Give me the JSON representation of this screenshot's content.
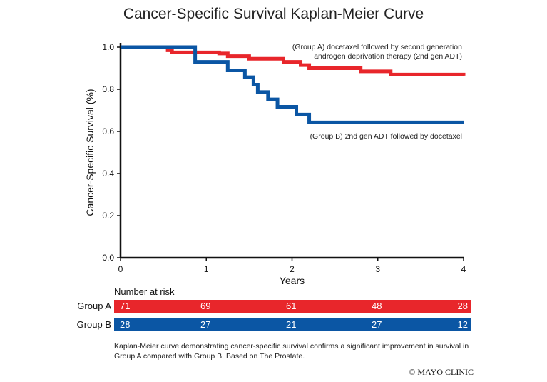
{
  "chart_data": {
    "type": "line",
    "title": "Cancer-Specific Survival Kaplan-Meier Curve",
    "xlabel": "Years",
    "ylabel": "Cancer-Specific Survival (%)",
    "xlim": [
      0,
      4
    ],
    "ylim": [
      0,
      1.0
    ],
    "xticks": [
      "0",
      "1",
      "2",
      "3",
      "4"
    ],
    "yticks": [
      "0.0",
      "0.2",
      "0.4",
      "0.6",
      "0.8",
      "1.0"
    ],
    "series": [
      {
        "name": "(Group A) docetaxel followed by second generation androgen deprivation therapy (2nd gen ADT)",
        "label_lines": [
          "(Group A) docetaxel followed by second generation",
          "androgen deprivation therapy (2nd gen ADT)"
        ],
        "color": "#e8262b",
        "steps": [
          [
            0,
            1.0
          ],
          [
            0.55,
            0.985
          ],
          [
            0.6,
            0.975
          ],
          [
            1.15,
            0.97
          ],
          [
            1.25,
            0.957
          ],
          [
            1.5,
            0.945
          ],
          [
            1.9,
            0.93
          ],
          [
            2.1,
            0.915
          ],
          [
            2.2,
            0.9
          ],
          [
            2.8,
            0.885
          ],
          [
            3.15,
            0.87
          ],
          [
            4,
            0.865
          ]
        ]
      },
      {
        "name": "(Group B) 2nd gen ADT followed by docetaxel",
        "label_lines": [
          "(Group B) 2nd gen ADT followed by docetaxel"
        ],
        "color": "#0b56a4",
        "steps": [
          [
            0,
            1.0
          ],
          [
            0.87,
            0.93
          ],
          [
            1.25,
            0.89
          ],
          [
            1.45,
            0.857
          ],
          [
            1.55,
            0.822
          ],
          [
            1.6,
            0.787
          ],
          [
            1.72,
            0.752
          ],
          [
            1.83,
            0.717
          ],
          [
            2.05,
            0.68
          ],
          [
            2.2,
            0.643
          ],
          [
            4,
            0.643
          ]
        ]
      }
    ],
    "risk_table": {
      "heading": "Number at risk",
      "rows": [
        {
          "group": "Group A",
          "color": "#e8262b",
          "values": [
            "71",
            "69",
            "61",
            "48",
            "28"
          ]
        },
        {
          "group": "Group B",
          "color": "#0b56a4",
          "values": [
            "28",
            "27",
            "21",
            "27",
            "12"
          ]
        }
      ]
    }
  },
  "caption": "Kaplan-Meier curve demonstrating cancer-specific survival confirms a significant improvement in survival in Group A compared with Group B. Based on The Prostate.",
  "credit": "© MAYO CLINIC"
}
